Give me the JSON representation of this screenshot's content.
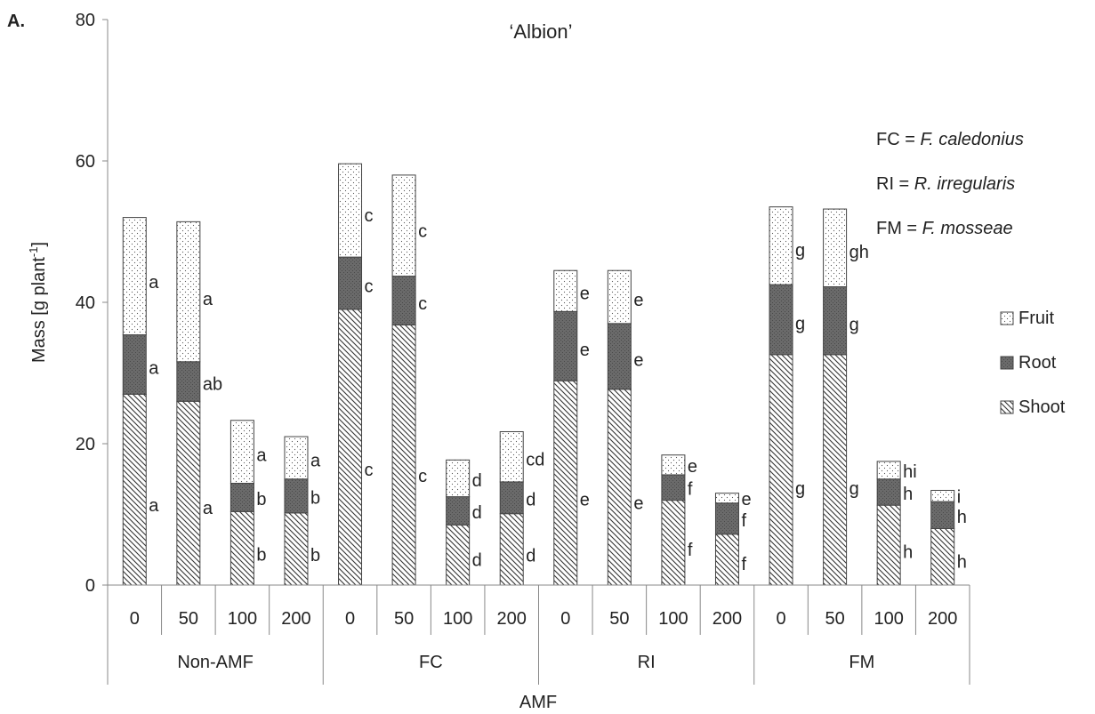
{
  "panel_label": "A.",
  "notes": [
    {
      "abbr": "FC = ",
      "name": "F. caledonius"
    },
    {
      "abbr": "RI = ",
      "name": "R. irregularis"
    },
    {
      "abbr": "FM = ",
      "name": "F. mosseae"
    }
  ],
  "chart_data": {
    "type": "bar",
    "stacked": true,
    "title": "‘Albion’",
    "xlabel": "AMF",
    "ylabel": "Mass [g plant-1]",
    "ylabel_parts": {
      "main": "Mass [g plant",
      "sup": "-1",
      "end": "]"
    },
    "ylim": [
      0,
      80
    ],
    "yticks": [
      0,
      20,
      40,
      60,
      80
    ],
    "grid": false,
    "legend_position": "right",
    "groups": [
      {
        "name": "Non-AMF",
        "levels": [
          "0",
          "50",
          "100",
          "200"
        ]
      },
      {
        "name": "FC",
        "levels": [
          "0",
          "50",
          "100",
          "200"
        ]
      },
      {
        "name": "RI",
        "levels": [
          "0",
          "50",
          "100",
          "200"
        ]
      },
      {
        "name": "FM",
        "levels": [
          "0",
          "50",
          "100",
          "200"
        ]
      }
    ],
    "series": [
      {
        "name": "Shoot",
        "pattern": "hatch",
        "values": [
          27,
          26,
          10.4,
          10.2,
          39,
          36.8,
          8.5,
          10.1,
          28.9,
          27.7,
          12,
          7.2,
          32.6,
          32.6,
          11.3,
          8
        ],
        "letters": [
          "a",
          "a",
          "b",
          "b",
          "c",
          "c",
          "d",
          "d",
          "e",
          "e",
          "f",
          "f",
          "g",
          "g",
          "h",
          "h"
        ]
      },
      {
        "name": "Root",
        "pattern": "dark",
        "values": [
          8.4,
          5.6,
          4,
          4.8,
          7.4,
          6.9,
          4,
          4.5,
          9.8,
          9.3,
          3.6,
          4.4,
          9.9,
          9.6,
          3.7,
          3.8
        ],
        "letters": [
          "a",
          "ab",
          "b",
          "b",
          "c",
          "c",
          "d",
          "d",
          "e",
          "e",
          "f",
          "f",
          "g",
          "g",
          "h",
          "h"
        ]
      },
      {
        "name": "Fruit",
        "pattern": "dots",
        "values": [
          16.6,
          19.8,
          8.9,
          6,
          13.2,
          14.3,
          5.2,
          7.1,
          5.8,
          7.5,
          2.8,
          1.4,
          11,
          11,
          2.5,
          1.6
        ],
        "letters": [
          "a",
          "a",
          "a",
          "a",
          "c",
          "c",
          "d",
          "cd",
          "e",
          "e",
          "e",
          "e",
          "g",
          "gh",
          "hi",
          "i"
        ]
      }
    ]
  }
}
